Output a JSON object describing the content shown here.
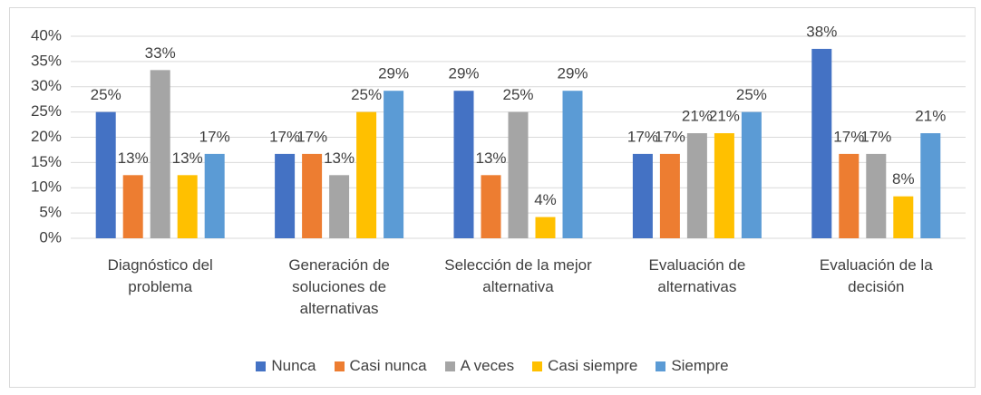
{
  "chart_data": {
    "type": "bar",
    "categories": [
      "Diagnóstico del problema",
      "Generación de soluciones de alternativas",
      "Selección de la mejor alternativa",
      "Evaluación de alternativas",
      "Evaluación de la decisión"
    ],
    "series": [
      {
        "name": "Nunca",
        "color": "#4472c4",
        "values": [
          25,
          16.7,
          29.2,
          16.7,
          37.5
        ],
        "value_labels": [
          "25%",
          "17%",
          "29%",
          "17%",
          "38%"
        ]
      },
      {
        "name": "Casi nunca",
        "color": "#ed7d31",
        "values": [
          12.5,
          16.7,
          12.5,
          16.7,
          16.7
        ],
        "value_labels": [
          "13%",
          "17%",
          "13%",
          "17%",
          "17%"
        ]
      },
      {
        "name": "A veces",
        "color": "#a5a5a5",
        "values": [
          33.3,
          12.5,
          25,
          20.8,
          16.7
        ],
        "value_labels": [
          "33%",
          "13%",
          "25%",
          "21%",
          "17%"
        ]
      },
      {
        "name": "Casi siempre",
        "color": "#ffc000",
        "values": [
          12.5,
          25,
          4.2,
          20.8,
          8.3
        ],
        "value_labels": [
          "13%",
          "25%",
          "4%",
          "21%",
          "8%"
        ]
      },
      {
        "name": "Siempre",
        "color": "#5b9bd5",
        "values": [
          16.7,
          29.2,
          29.2,
          25,
          20.8
        ],
        "value_labels": [
          "17%",
          "29%",
          "29%",
          "25%",
          "21%"
        ]
      }
    ],
    "ylim": [
      0,
      40
    ],
    "yticks": [
      {
        "value": 0,
        "label": "0%"
      },
      {
        "value": 5,
        "label": "5%"
      },
      {
        "value": 10,
        "label": "10%"
      },
      {
        "value": 15,
        "label": "15%"
      },
      {
        "value": 20,
        "label": "20%"
      },
      {
        "value": 25,
        "label": "25%"
      },
      {
        "value": 30,
        "label": "30%"
      },
      {
        "value": 35,
        "label": "35%"
      },
      {
        "value": 40,
        "label": "40%"
      }
    ],
    "grid": true,
    "legend": "bottom"
  }
}
